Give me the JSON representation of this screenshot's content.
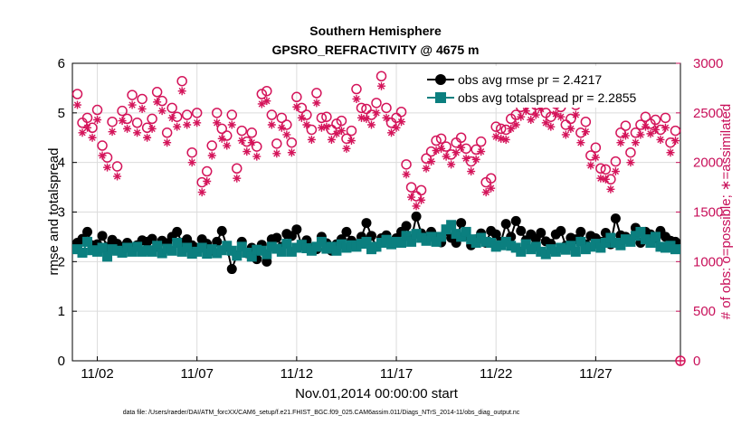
{
  "chart_data": {
    "type": "line",
    "title": "Southern Hemisphere",
    "subtitle": "GPSRO_REFRACTIVITY @ 4675 m",
    "xlabel": "Nov.01,2014 00:00:00 start",
    "ylabel_left": "rmse and totalspread",
    "ylabel_right": "# of obs: o=possible; ∗=assimilated",
    "x_ticks": [
      "11/02",
      "11/07",
      "11/12",
      "11/17",
      "11/22",
      "11/27"
    ],
    "x_tick_days": [
      2,
      7,
      12,
      17,
      22,
      27
    ],
    "xlim_days": [
      0.75,
      31.25
    ],
    "ylim_left": [
      0,
      6
    ],
    "y_ticks_left": [
      "0",
      "1",
      "2",
      "3",
      "4",
      "5",
      "6"
    ],
    "ylim_right": [
      0,
      3000
    ],
    "y_ticks_right": [
      "0",
      "500",
      "1000",
      "1500",
      "2000",
      "2500",
      "3000"
    ],
    "grid": true,
    "legend_position": "top-right",
    "footnote": "data file: /Users/raeder/DAI/ATM_forcXX/CAM6_setup/f.e21.FHIST_BGC.f09_025.CAM6assim.011/Diags_NTrS_2014-11/obs_diag_output.nc",
    "colors": {
      "rmse": "#000000",
      "spread": "#0b7f7f",
      "counts": "#d4145a"
    },
    "series": [
      {
        "name": "obs avg rmse pr = 2.4217",
        "axis": "left",
        "marker": "filled-circle",
        "x_days": [
          1.0,
          1.25,
          1.5,
          1.75,
          2.0,
          2.25,
          2.5,
          2.75,
          3.0,
          3.25,
          3.5,
          3.75,
          4.0,
          4.25,
          4.5,
          4.75,
          5.0,
          5.25,
          5.5,
          5.75,
          6.0,
          6.25,
          6.5,
          6.75,
          7.0,
          7.25,
          7.5,
          7.75,
          8.0,
          8.25,
          8.5,
          8.75,
          9.0,
          9.25,
          9.5,
          9.75,
          10.0,
          10.25,
          10.5,
          10.75,
          11.0,
          11.25,
          11.5,
          11.75,
          12.0,
          12.25,
          12.5,
          12.75,
          13.0,
          13.25,
          13.5,
          13.75,
          14.0,
          14.25,
          14.5,
          14.75,
          15.0,
          15.25,
          15.5,
          15.75,
          16.0,
          16.25,
          16.5,
          16.75,
          17.0,
          17.25,
          17.5,
          17.75,
          18.0,
          18.25,
          18.5,
          18.75,
          19.0,
          19.25,
          19.5,
          19.75,
          20.0,
          20.25,
          20.5,
          20.75,
          21.0,
          21.25,
          21.5,
          21.75,
          22.0,
          22.25,
          22.5,
          22.75,
          23.0,
          23.25,
          23.5,
          23.75,
          24.0,
          24.25,
          24.5,
          24.75,
          25.0,
          25.25,
          25.5,
          25.75,
          26.0,
          26.25,
          26.5,
          26.75,
          27.0,
          27.25,
          27.5,
          27.75,
          28.0,
          28.25,
          28.5,
          28.75,
          29.0,
          29.25,
          29.5,
          29.75,
          30.0,
          30.25,
          30.5,
          30.75,
          31.0
        ],
        "values": [
          2.38,
          2.46,
          2.6,
          2.33,
          2.35,
          2.52,
          2.3,
          2.44,
          2.36,
          2.29,
          2.38,
          2.27,
          2.33,
          2.43,
          2.4,
          2.46,
          2.3,
          2.42,
          2.37,
          2.5,
          2.6,
          2.38,
          2.45,
          2.33,
          2.28,
          2.45,
          2.36,
          2.22,
          2.4,
          2.62,
          2.3,
          1.85,
          2.13,
          2.4,
          2.17,
          2.28,
          2.05,
          2.34,
          2.0,
          2.45,
          2.48,
          2.3,
          2.56,
          2.52,
          2.65,
          2.33,
          2.43,
          2.28,
          2.25,
          2.5,
          2.37,
          2.22,
          2.35,
          2.45,
          2.6,
          2.42,
          2.32,
          2.5,
          2.78,
          2.52,
          2.3,
          2.47,
          2.53,
          2.38,
          2.47,
          2.6,
          2.72,
          2.45,
          2.91,
          2.57,
          2.47,
          2.6,
          2.5,
          2.39,
          2.62,
          2.48,
          2.38,
          2.78,
          2.52,
          2.33,
          2.45,
          2.57,
          2.38,
          2.62,
          2.55,
          2.4,
          2.76,
          2.5,
          2.82,
          2.62,
          2.43,
          2.55,
          2.46,
          2.58,
          2.41,
          2.36,
          2.55,
          2.62,
          2.32,
          2.48,
          2.45,
          2.6,
          2.35,
          2.52,
          2.47,
          2.4,
          2.58,
          2.35,
          2.87,
          2.53,
          2.5,
          2.45,
          2.68,
          2.38,
          2.6,
          2.55,
          2.47,
          2.62,
          2.5,
          2.42,
          2.4
        ]
      },
      {
        "name": "obs avg totalspread pr = 2.2855",
        "axis": "left",
        "marker": "filled-square",
        "x_days": [
          1.0,
          1.25,
          1.5,
          1.75,
          2.0,
          2.25,
          2.5,
          2.75,
          3.0,
          3.25,
          3.5,
          3.75,
          4.0,
          4.25,
          4.5,
          4.75,
          5.0,
          5.25,
          5.5,
          5.75,
          6.0,
          6.25,
          6.5,
          6.75,
          7.0,
          7.25,
          7.5,
          7.75,
          8.0,
          8.25,
          8.5,
          8.75,
          9.0,
          9.25,
          9.5,
          9.75,
          10.0,
          10.25,
          10.5,
          10.75,
          11.0,
          11.25,
          11.5,
          11.75,
          12.0,
          12.25,
          12.5,
          12.75,
          13.0,
          13.25,
          13.5,
          13.75,
          14.0,
          14.25,
          14.5,
          14.75,
          15.0,
          15.25,
          15.5,
          15.75,
          16.0,
          16.25,
          16.5,
          16.75,
          17.0,
          17.25,
          17.5,
          17.75,
          18.0,
          18.25,
          18.5,
          18.75,
          19.0,
          19.25,
          19.5,
          19.75,
          20.0,
          20.25,
          20.5,
          20.75,
          21.0,
          21.25,
          21.5,
          21.75,
          22.0,
          22.25,
          22.5,
          22.75,
          23.0,
          23.25,
          23.5,
          23.75,
          24.0,
          24.25,
          24.5,
          24.75,
          25.0,
          25.25,
          25.5,
          25.75,
          26.0,
          26.25,
          26.5,
          26.75,
          27.0,
          27.25,
          27.5,
          27.75,
          28.0,
          28.25,
          28.5,
          28.75,
          29.0,
          29.25,
          29.5,
          29.75,
          30.0,
          30.25,
          30.5,
          30.75,
          31.0
        ],
        "values": [
          2.25,
          2.18,
          2.4,
          2.23,
          2.2,
          2.28,
          2.1,
          2.25,
          2.22,
          2.18,
          2.28,
          2.2,
          2.3,
          2.2,
          2.23,
          2.2,
          2.32,
          2.17,
          2.26,
          2.22,
          2.38,
          2.2,
          2.28,
          2.16,
          2.2,
          2.28,
          2.16,
          2.25,
          2.17,
          2.23,
          2.32,
          2.22,
          2.12,
          2.3,
          2.18,
          2.1,
          2.24,
          2.22,
          2.15,
          2.3,
          2.26,
          2.2,
          2.36,
          2.2,
          2.28,
          2.34,
          2.27,
          2.22,
          2.3,
          2.4,
          2.26,
          2.3,
          2.22,
          2.35,
          2.28,
          2.33,
          2.3,
          2.36,
          2.4,
          2.25,
          2.3,
          2.38,
          2.44,
          2.35,
          2.4,
          2.38,
          2.52,
          2.4,
          2.56,
          2.48,
          2.42,
          2.5,
          2.4,
          2.5,
          2.65,
          2.74,
          2.56,
          2.5,
          2.6,
          2.45,
          2.38,
          2.48,
          2.4,
          2.38,
          2.3,
          2.33,
          2.4,
          2.32,
          2.28,
          2.2,
          2.35,
          2.25,
          2.3,
          2.2,
          2.15,
          2.25,
          2.2,
          2.28,
          2.24,
          2.32,
          2.2,
          2.4,
          2.25,
          2.3,
          2.36,
          2.28,
          2.38,
          2.48,
          2.38,
          2.33,
          2.45,
          2.4,
          2.52,
          2.6,
          2.45,
          2.38,
          2.5,
          2.3,
          2.28,
          2.32,
          2.25
        ]
      },
      {
        "name": "possible",
        "axis": "right",
        "marker": "open-circle",
        "x_days": [
          1.0,
          1.25,
          1.5,
          1.75,
          2.0,
          2.25,
          2.5,
          2.75,
          3.0,
          3.25,
          3.5,
          3.75,
          4.0,
          4.25,
          4.5,
          4.75,
          5.0,
          5.25,
          5.5,
          5.75,
          6.0,
          6.25,
          6.5,
          6.75,
          7.0,
          7.25,
          7.5,
          7.75,
          8.0,
          8.25,
          8.5,
          8.75,
          9.0,
          9.25,
          9.5,
          9.75,
          10.0,
          10.25,
          10.5,
          10.75,
          11.0,
          11.25,
          11.5,
          11.75,
          12.0,
          12.25,
          12.5,
          12.75,
          13.0,
          13.25,
          13.5,
          13.75,
          14.0,
          14.25,
          14.5,
          14.75,
          15.0,
          15.25,
          15.5,
          15.75,
          16.0,
          16.25,
          16.5,
          16.75,
          17.0,
          17.25,
          17.5,
          17.75,
          18.0,
          18.25,
          18.5,
          18.75,
          19.0,
          19.25,
          19.5,
          19.75,
          20.0,
          20.25,
          20.5,
          20.75,
          21.0,
          21.25,
          21.5,
          21.75,
          22.0,
          22.25,
          22.5,
          22.75,
          23.0,
          23.25,
          23.5,
          23.75,
          24.0,
          24.25,
          24.5,
          24.75,
          25.0,
          25.25,
          25.5,
          25.75,
          26.0,
          26.25,
          26.5,
          26.75,
          27.0,
          27.25,
          27.5,
          27.75,
          28.0,
          28.25,
          28.5,
          28.75,
          29.0,
          29.25,
          29.5,
          29.75,
          30.0,
          30.25,
          30.5,
          30.75,
          31.0
        ],
        "values": [
          2690,
          2400,
          2450,
          2350,
          2530,
          2170,
          2050,
          2410,
          1960,
          2520,
          2440,
          2680,
          2400,
          2640,
          2350,
          2440,
          2710,
          2620,
          2300,
          2550,
          2460,
          2820,
          2480,
          2100,
          2500,
          1800,
          1910,
          2170,
          2500,
          2340,
          2270,
          2480,
          1940,
          2320,
          2210,
          2300,
          2160,
          2690,
          2720,
          2480,
          2190,
          2450,
          2380,
          2200,
          2660,
          2550,
          2480,
          2330,
          2700,
          2450,
          2460,
          2330,
          2390,
          2420,
          2240,
          2320,
          2740,
          2550,
          2540,
          2480,
          2600,
          2870,
          2550,
          2400,
          2450,
          2510,
          1980,
          1750,
          1660,
          1720,
          2040,
          2110,
          2220,
          2240,
          2160,
          2080,
          2200,
          2250,
          2140,
          2010,
          2130,
          2210,
          1800,
          1840,
          2360,
          2340,
          2330,
          2440,
          2480,
          2560,
          2620,
          2530,
          2580,
          2640,
          2500,
          2460,
          2590,
          2560,
          2380,
          2440,
          2580,
          2300,
          2410,
          2070,
          2150,
          1940,
          1930,
          1830,
          2010,
          2300,
          2370,
          2100,
          2300,
          2380,
          2460,
          2390,
          2430,
          2330,
          2450,
          2200,
          2320
        ]
      },
      {
        "name": "assimilated",
        "axis": "right",
        "marker": "asterisk",
        "x_days": [
          1.0,
          1.25,
          1.5,
          1.75,
          2.0,
          2.25,
          2.5,
          2.75,
          3.0,
          3.25,
          3.5,
          3.75,
          4.0,
          4.25,
          4.5,
          4.75,
          5.0,
          5.25,
          5.5,
          5.75,
          6.0,
          6.25,
          6.5,
          6.75,
          7.0,
          7.25,
          7.5,
          7.75,
          8.0,
          8.25,
          8.5,
          8.75,
          9.0,
          9.25,
          9.5,
          9.75,
          10.0,
          10.25,
          10.5,
          10.75,
          11.0,
          11.25,
          11.5,
          11.75,
          12.0,
          12.25,
          12.5,
          12.75,
          13.0,
          13.25,
          13.5,
          13.75,
          14.0,
          14.25,
          14.5,
          14.75,
          15.0,
          15.25,
          15.5,
          15.75,
          16.0,
          16.25,
          16.5,
          16.75,
          17.0,
          17.25,
          17.5,
          17.75,
          18.0,
          18.25,
          18.5,
          18.75,
          19.0,
          19.25,
          19.5,
          19.75,
          20.0,
          20.25,
          20.5,
          20.75,
          21.0,
          21.25,
          21.5,
          21.75,
          22.0,
          22.25,
          22.5,
          22.75,
          23.0,
          23.25,
          23.5,
          23.75,
          24.0,
          24.25,
          24.5,
          24.75,
          25.0,
          25.25,
          25.5,
          25.75,
          26.0,
          26.25,
          26.5,
          26.75,
          27.0,
          27.25,
          27.5,
          27.75,
          28.0,
          28.25,
          28.5,
          28.75,
          29.0,
          29.25,
          29.5,
          29.75,
          30.0,
          30.25,
          30.5,
          30.75,
          31.0
        ],
        "values": [
          2580,
          2300,
          2350,
          2250,
          2430,
          2070,
          1950,
          2310,
          1860,
          2420,
          2340,
          2580,
          2300,
          2540,
          2250,
          2340,
          2610,
          2520,
          2200,
          2450,
          2360,
          2720,
          2380,
          2000,
          2400,
          1700,
          1810,
          2070,
          2400,
          2240,
          2170,
          2380,
          1840,
          2220,
          2110,
          2200,
          2060,
          2590,
          2620,
          2380,
          2090,
          2350,
          2280,
          2100,
          2560,
          2450,
          2380,
          2230,
          2600,
          2350,
          2360,
          2230,
          2290,
          2320,
          2140,
          2220,
          2640,
          2450,
          2440,
          2380,
          2500,
          2770,
          2450,
          2300,
          2350,
          2410,
          1880,
          1650,
          1560,
          1620,
          1940,
          2010,
          2120,
          2140,
          2060,
          1980,
          2100,
          2150,
          2040,
          1910,
          2030,
          2110,
          1700,
          1740,
          2260,
          2240,
          2230,
          2340,
          2380,
          2460,
          2520,
          2430,
          2480,
          2540,
          2400,
          2360,
          2490,
          2460,
          2280,
          2340,
          2480,
          2200,
          2310,
          1970,
          2050,
          1840,
          1830,
          1730,
          1910,
          2200,
          2270,
          2000,
          2200,
          2280,
          2360,
          2290,
          2330,
          2230,
          2350,
          2100,
          2220
        ]
      }
    ]
  }
}
